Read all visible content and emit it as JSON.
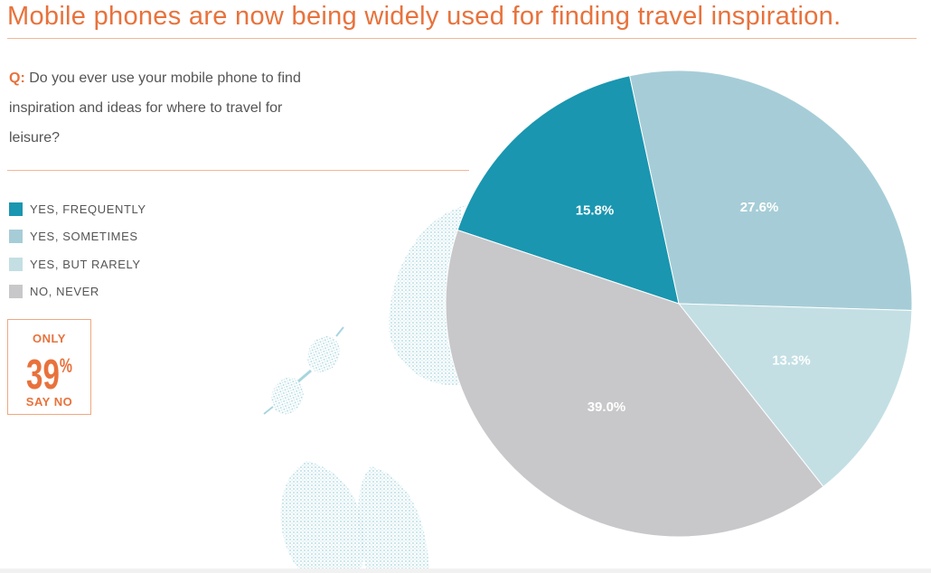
{
  "title": "Mobile phones are now being widely used for finding travel inspiration.",
  "question": {
    "label": "Q:",
    "text": " Do you ever use your mobile phone to find inspiration and ideas for where to travel for leisure?"
  },
  "callout": {
    "top": "ONLY",
    "value": "39",
    "unit": "%",
    "bottom": "SAY NO"
  },
  "colors": {
    "accent": "#e8723c",
    "decoration": "#a8d5de"
  },
  "chart_data": {
    "type": "pie",
    "series": [
      {
        "name": "YES, FREQUENTLY",
        "value": 15.8,
        "label": "15.8%",
        "color": "#1a96b0"
      },
      {
        "name": "YES, SOMETIMES",
        "value": 27.6,
        "label": "27.6%",
        "color": "#a6cdd7"
      },
      {
        "name": "YES, BUT RARELY",
        "value": 13.3,
        "label": "13.3%",
        "color": "#c3dfe4"
      },
      {
        "name": "NO, NEVER",
        "value": 39.0,
        "label": "39.0%",
        "color": "#c8c8ca"
      }
    ],
    "legend_position": "left"
  }
}
